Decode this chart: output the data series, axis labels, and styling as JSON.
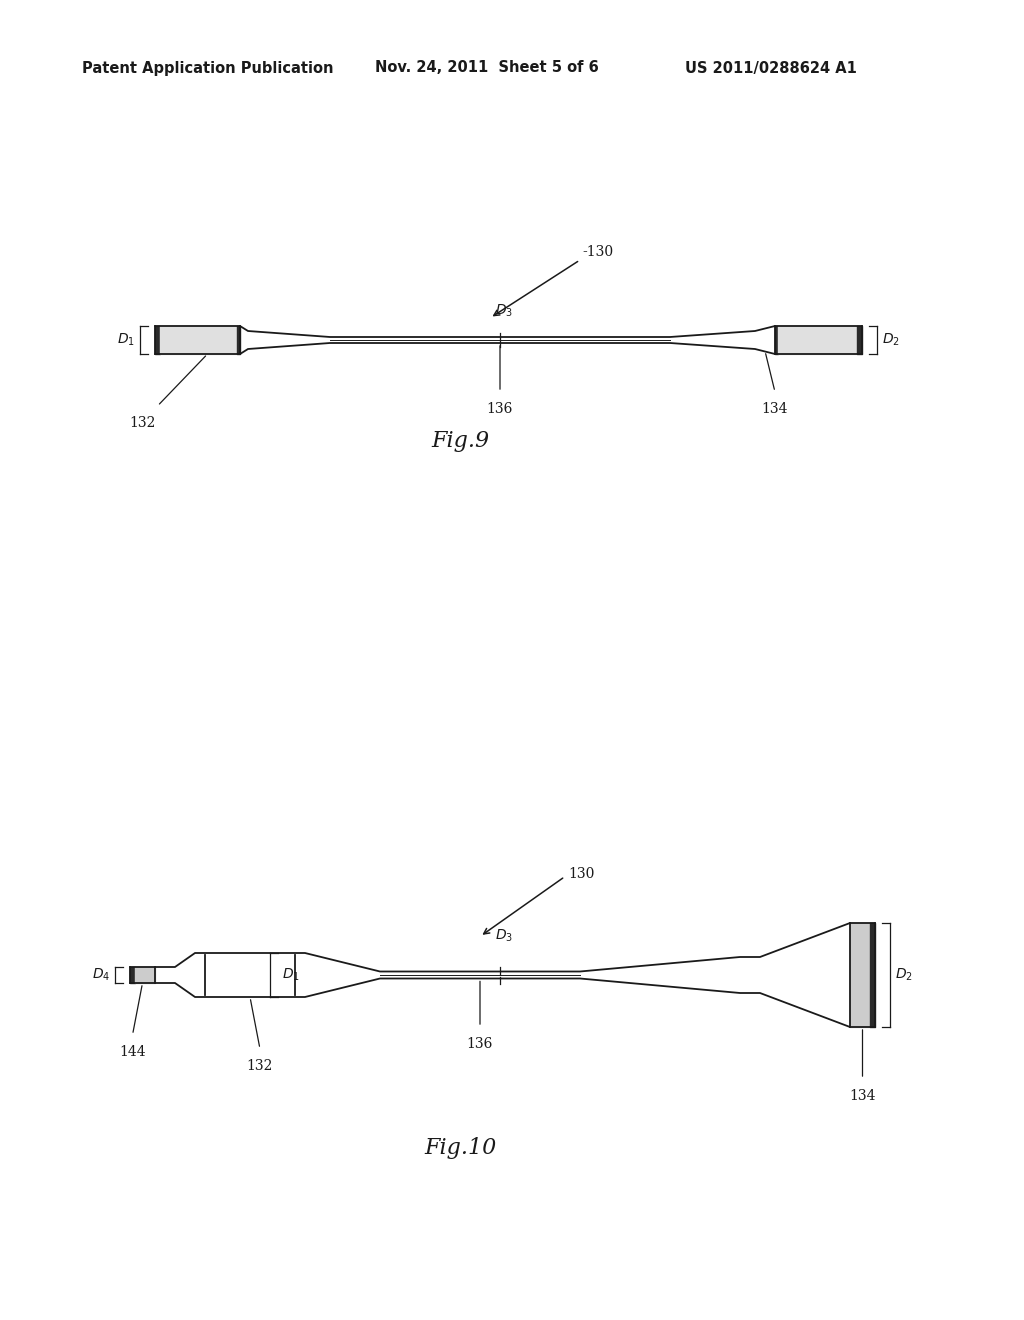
{
  "bg_color": "#ffffff",
  "header_left": "Patent Application Publication",
  "header_mid": "Nov. 24, 2011  Sheet 5 of 6",
  "header_right": "US 2011/0288624 A1",
  "fig9_label": "Fig.9",
  "fig10_label": "Fig.10",
  "line_color": "#1a1a1a",
  "text_color": "#1a1a1a"
}
